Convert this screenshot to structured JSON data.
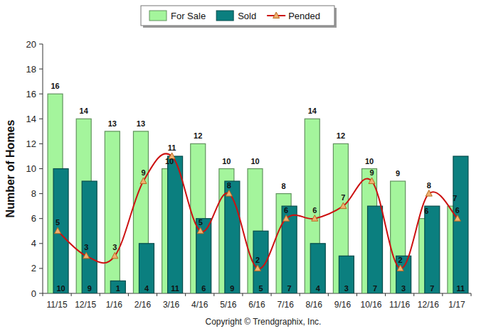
{
  "chart_data": {
    "type": "bar",
    "ylabel": "Number of Homes",
    "annotations": [
      "Copyright © Trendgraphix, Inc."
    ],
    "categories": [
      "11/15",
      "12/15",
      "1/16",
      "2/16",
      "3/16",
      "4/16",
      "5/16",
      "6/16",
      "7/16",
      "8/16",
      "9/16",
      "10/16",
      "11/16",
      "12/16",
      "1/17"
    ],
    "series": [
      {
        "name": "For Sale",
        "type": "bar",
        "color": "#a4f59c",
        "values": [
          16,
          14,
          13,
          13,
          10,
          12,
          10,
          10,
          8,
          14,
          12,
          10,
          9,
          6,
          7
        ]
      },
      {
        "name": "Sold",
        "type": "bar",
        "color": "#0b7f7f",
        "values": [
          10,
          9,
          1,
          4,
          11,
          6,
          9,
          5,
          7,
          4,
          3,
          7,
          3,
          7,
          11
        ]
      },
      {
        "name": "Pended",
        "type": "line",
        "color": "#cc1111",
        "marker": "triangle",
        "line_style": "solid",
        "values": [
          5,
          3,
          3,
          9,
          11,
          5,
          8,
          2,
          6,
          6,
          7,
          9,
          2,
          8,
          6
        ]
      }
    ],
    "ylim": [
      0,
      20
    ],
    "yticks": [
      0,
      2,
      4,
      6,
      8,
      10,
      12,
      14,
      16,
      18,
      20
    ],
    "grid": false,
    "legend": "top",
    "data_labels": true
  }
}
